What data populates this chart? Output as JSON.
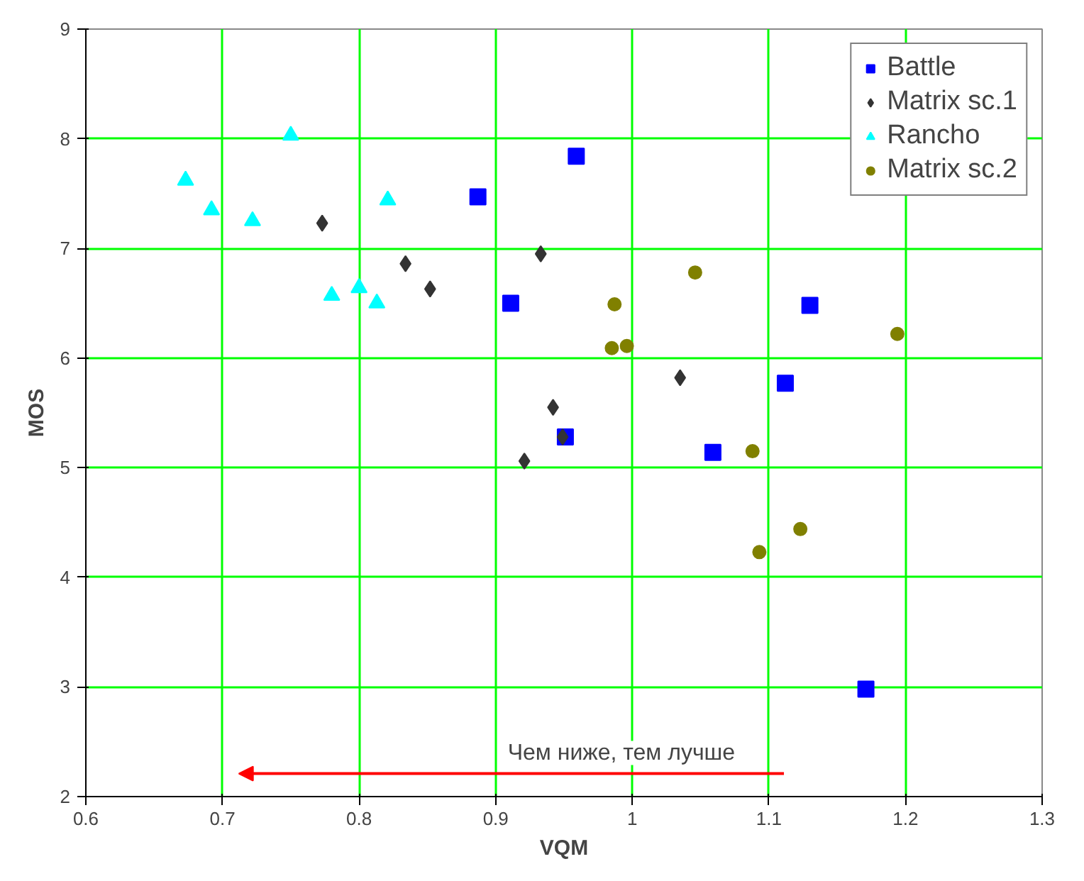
{
  "chart_data": {
    "type": "scatter",
    "xlabel": "VQM",
    "ylabel": "MOS",
    "xlim": [
      0.6,
      1.3
    ],
    "xticks": [
      0.6,
      0.7,
      0.8,
      0.9,
      1,
      1.1,
      1.2,
      1.3
    ],
    "ylim": [
      2,
      9
    ],
    "yticks": [
      2,
      3,
      4,
      5,
      6,
      7,
      8,
      9
    ],
    "grid": true,
    "legend": "top right",
    "annotations": [
      "Чем ниже, тем лучше"
    ],
    "series": [
      {
        "name": "Battle",
        "color": "#0000ff",
        "marker": "square",
        "x": [
          0.887,
          0.959,
          0.911,
          0.951,
          1.059,
          1.13,
          1.112,
          1.171
        ],
        "values": [
          7.47,
          7.84,
          6.5,
          5.28,
          5.14,
          6.48,
          5.77,
          2.98
        ]
      },
      {
        "name": "Matrix sc.1",
        "color": "#333333",
        "marker": "diamond",
        "x": [
          0.773,
          0.834,
          0.852,
          0.933,
          0.942,
          0.949,
          0.921,
          1.035
        ],
        "values": [
          7.23,
          6.86,
          6.63,
          6.95,
          5.55,
          5.28,
          5.06,
          5.82
        ]
      },
      {
        "name": "Rancho",
        "color": "#00ffff",
        "marker": "triangle",
        "x": [
          0.673,
          0.692,
          0.722,
          0.75,
          0.78,
          0.8,
          0.813,
          0.821
        ],
        "values": [
          7.62,
          7.35,
          7.25,
          8.03,
          6.57,
          6.64,
          6.5,
          7.44
        ]
      },
      {
        "name": "Matrix sc.2",
        "color": "#808000",
        "marker": "circle",
        "x": [
          1.046,
          0.987,
          0.985,
          0.996,
          1.194,
          1.088,
          1.123,
          1.093
        ],
        "values": [
          6.78,
          6.49,
          6.09,
          6.11,
          6.22,
          5.15,
          4.44,
          4.23
        ]
      }
    ]
  }
}
